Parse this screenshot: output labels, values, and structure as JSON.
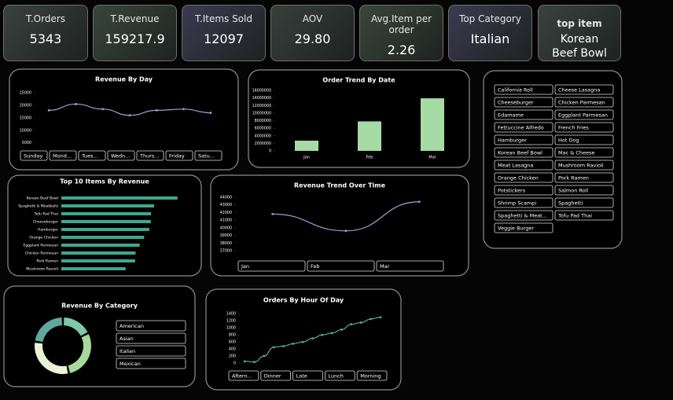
{
  "kpis": [
    {
      "label": "T.Orders",
      "value": 5343
    },
    {
      "label": "T.Revenue",
      "value": 159217.9
    },
    {
      "label": "T.Items Sold",
      "value": 12097
    },
    {
      "label": "AOV",
      "value": "29.80"
    },
    {
      "label": "Avg.Item per order",
      "value": 2.26
    },
    {
      "label": "Top Category",
      "value": "Italian"
    },
    {
      "label": "top item",
      "value": "Korean Beef Bowl"
    }
  ],
  "item_slicer": [
    "California Roll",
    "Cheese Lasagna",
    "Cheeseburger",
    "Chicken Parmesan",
    "Edamame",
    "Eggplant Parmesan",
    "Fettuccine Alfredo",
    "French Fries",
    "Hamburger",
    "Hot Dog",
    "Korean Beef Bowl",
    "Mac & Cheese",
    "Meat Lasagna",
    "Mushroom Ravioli",
    "Orange Chicken",
    "Pork Ramen",
    "Potstickers",
    "Salmon Roll",
    "Shrimp Scampi",
    "Spaghetti",
    "Spaghetti & Meat...",
    "Tofu Pad Thai",
    "Veggie Burger"
  ],
  "chart_data": [
    {
      "type": "line",
      "title": "Revenue By Day",
      "values": [
        18000,
        20500,
        18500,
        16000,
        18000,
        18500,
        17000
      ],
      "ylim": [
        3000,
        26000
      ],
      "yticks": [
        5000,
        10000,
        15000,
        20000,
        25000
      ],
      "color": "#8ea7d6",
      "slicer": [
        "Sunday",
        "Mond...",
        "Tues...",
        "Wedn...",
        "Thurs...",
        "Friday",
        "Satu..."
      ]
    },
    {
      "type": "bar",
      "title": "Order Trend By Date",
      "categories": [
        "Jan",
        "Feb",
        "Mar"
      ],
      "values": [
        2700000,
        7800000,
        13900000
      ],
      "ylim": [
        0,
        16000000
      ],
      "yticks": [
        0,
        2000000,
        4000000,
        6000000,
        8000000,
        10000000,
        12000000,
        14000000,
        16000000
      ],
      "color": "#a6dba6"
    },
    {
      "type": "hbar",
      "title": "Top 10 Items By Revenue",
      "categories": [
        "Korean Beef Bowl",
        "Spaghetti & Meatballs",
        "Tofu Pad Thai",
        "Cheeseburger",
        "Hamburger",
        "Orange Chicken",
        "Eggplant Parmesan",
        "Chicken Parmesan",
        "Pork Ramen",
        "Mushroom Ravioli"
      ],
      "values": [
        10554,
        8436,
        8149,
        8132,
        7992,
        7524,
        7119,
        6745,
        6708,
        5840
      ],
      "xlim": [
        0,
        11000
      ],
      "color": "#3fa88c"
    },
    {
      "type": "line",
      "title": "Revenue Trend Over Time",
      "values": [
        41800,
        39600,
        43400
      ],
      "ylim": [
        36500,
        44300
      ],
      "yticks": [
        37000,
        38000,
        39000,
        40000,
        41000,
        42000,
        43000,
        44000
      ],
      "color": "#8ea7d6",
      "slicer": [
        "Jan",
        "Feb",
        "Mar"
      ]
    },
    {
      "type": "donut",
      "title": "Revenue By Category",
      "categories": [
        "American",
        "Asian",
        "Italian",
        "Mexican"
      ],
      "values": [
        28000,
        46000,
        49000,
        36000
      ],
      "colors": [
        "#7fc8a9",
        "#a6d99b",
        "#e8f3d8",
        "#5fa8a0"
      ]
    },
    {
      "type": "line",
      "title": "Orders By Hour Of Day",
      "values": [
        50,
        30,
        200,
        450,
        480,
        550,
        600,
        700,
        800,
        850,
        950,
        1100,
        1150,
        1250,
        1300
      ],
      "ylim": [
        0,
        1450
      ],
      "yticks": [
        0,
        200,
        400,
        600,
        800,
        1000,
        1200,
        1400
      ],
      "color": "#4fb08f",
      "slicer": [
        "Aftern...",
        "Dinner",
        "Late",
        "Lunch",
        "Morning"
      ]
    }
  ]
}
